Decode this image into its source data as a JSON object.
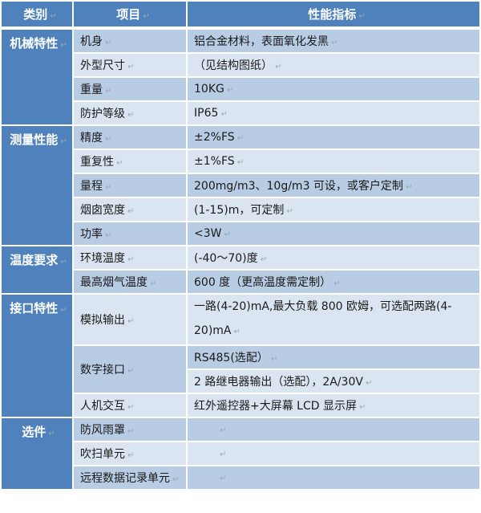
{
  "header": {
    "category": "类别",
    "item": "项目",
    "spec": "性能指标"
  },
  "colors": {
    "header": "#4f81bd",
    "row_dark": "#b8cce4",
    "row_light": "#dbe5f1"
  },
  "groups": [
    {
      "category": "机械特性",
      "rows": [
        {
          "item": "机身",
          "values": [
            "铝合金材料，表面氧化发黑"
          ]
        },
        {
          "item": "外型尺寸",
          "values": [
            "（见结构图纸）"
          ]
        },
        {
          "item": "重量",
          "values": [
            "10KG"
          ]
        },
        {
          "item": "防护等级",
          "values": [
            "IP65"
          ]
        }
      ]
    },
    {
      "category": "测量性能",
      "rows": [
        {
          "item": "精度",
          "values": [
            "±2%FS"
          ]
        },
        {
          "item": "重复性",
          "values": [
            "±1%FS"
          ]
        },
        {
          "item": "量程",
          "values": [
            "200mg/m3、10g/m3 可设，或客户定制"
          ]
        },
        {
          "item": "烟囱宽度",
          "values": [
            "(1-15)m，可定制"
          ]
        },
        {
          "item": "功率",
          "values": [
            "<3W"
          ]
        }
      ]
    },
    {
      "category": "温度要求",
      "rows": [
        {
          "item": "环境温度",
          "values": [
            "(-40～70)度"
          ]
        },
        {
          "item": "最高烟气温度",
          "values": [
            "600 度（更高温度需定制）"
          ]
        }
      ]
    },
    {
      "category": "接口特性",
      "rows": [
        {
          "item": "模拟输出",
          "values": [
            "一路(4-20)mA,最大负载 800 欧姆，可选配两路(4-20)mA"
          ]
        },
        {
          "item": "数字接口",
          "values": [
            "RS485(选配）",
            "2 路继电器输出（选配），2A/30V"
          ]
        },
        {
          "item": "人机交互",
          "values": [
            "红外遥控器+大屏幕 LCD 显示屏"
          ]
        }
      ]
    },
    {
      "category": "选件",
      "rows": [
        {
          "item": "防风雨罩",
          "values": [
            ""
          ]
        },
        {
          "item": "吹扫单元",
          "values": [
            ""
          ]
        },
        {
          "item": "远程数据记录单元",
          "values": [
            ""
          ]
        }
      ]
    }
  ]
}
